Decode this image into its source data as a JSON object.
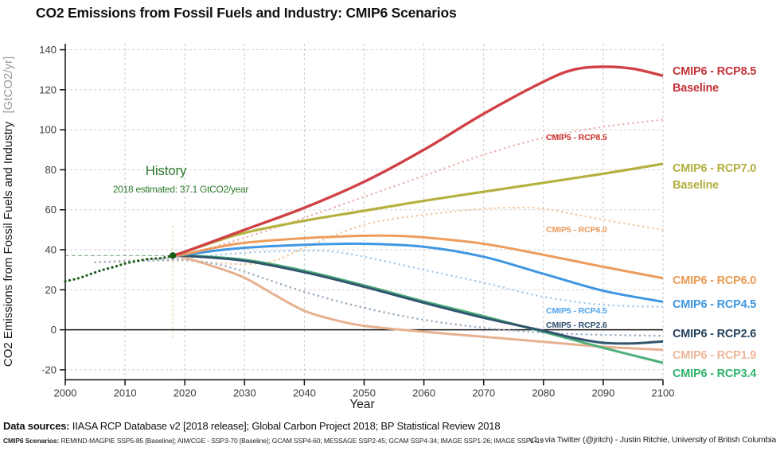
{
  "title": "CO2 Emissions from Fossil Fuels and Industry: CMIP6 Scenarios",
  "axes": {
    "x_label": "Year",
    "y_label": "CO2 Emissions from Fossil Fuels and Industry",
    "y_label_unit": "[GtCO2/yr]",
    "x_ticks": [
      2000,
      2010,
      2020,
      2030,
      2040,
      2050,
      2060,
      2070,
      2080,
      2090,
      2100
    ],
    "y_ticks": [
      -20,
      0,
      20,
      40,
      60,
      80,
      100,
      120,
      140
    ]
  },
  "annotations": {
    "history_title": "History",
    "history_detail": "2018 estimated: 37.1 GtCO2/year",
    "history_color": "#2d7a2d",
    "marker_year": 2018,
    "marker_value": 37.1,
    "marker_color": "#1a5c17"
  },
  "plot_labels": [
    {
      "text": "CMIP5 - RCP8.5",
      "color": "#c9302c"
    },
    {
      "text": "CMIP5 - RCP6.0",
      "color": "#e8995a"
    },
    {
      "text": "CMIP5 - RCP4.5",
      "color": "#4da3e8"
    },
    {
      "text": "CMIP5 - RCP2.6",
      "color": "#2f4f6f"
    }
  ],
  "legend": [
    {
      "label": "CMIP6 - RCP8.5",
      "sublabel": "Baseline",
      "color": "#c43338"
    },
    {
      "label": "CMIP6 - RCP7.0",
      "sublabel": "Baseline",
      "color": "#b3af3e"
    },
    {
      "label": "CMIP6 - RCP6.0",
      "sublabel": "",
      "color": "#ea9a52"
    },
    {
      "label": "CMIP6 - RCP4.5",
      "sublabel": "",
      "color": "#3d96e0"
    },
    {
      "label": "CMIP6 - RCP2.6",
      "sublabel": "",
      "color": "#25425c"
    },
    {
      "label": "CMIP6 - RCP1.9",
      "sublabel": "",
      "color": "#ecb699"
    },
    {
      "label": "CMIP6 - RCP3.4",
      "sublabel": "",
      "color": "#2fb36b"
    }
  ],
  "footer": {
    "sources_bold": "Data sources:",
    "sources_rest": " IIASA RCP Database v2 [2018 release]; Global Carbon Project 2018; BP Statistical Review 2018",
    "scenarios_bold": "CMIP6 Scenarios:",
    "scenarios_rest": " REMIND-MAGPIE SSP5-85 [Baseline]; AIM/CGE - SSP3-70 [Baseline]; GCAM SSP4-60; MESSAGE SSP2-45; GCAM SSP4-34; IMAGE SSP1-26; IMAGE SSP1-19",
    "credit": "v1 - via Twitter (@jritch) - Justin Ritchie, University of British Columbia"
  },
  "chart_data": {
    "type": "line",
    "title": "CO2 Emissions from Fossil Fuels and Industry: CMIP6 Scenarios",
    "xlabel": "Year",
    "ylabel": "CO2 Emissions from Fossil Fuels and Industry [GtCO2/yr]",
    "x_range": [
      2000,
      2100
    ],
    "y_range": [
      -25,
      143
    ],
    "grid": true,
    "legend_position": "right",
    "series": [
      {
        "id": "cmip5-rcp85",
        "name": "CMIP5 - RCP8.5",
        "color": "#efb6b4",
        "dash": "dotted",
        "width": 2.6,
        "points": [
          [
            2005,
            33.8
          ],
          [
            2010,
            34.6
          ],
          [
            2015,
            35.3
          ],
          [
            2020,
            37.5
          ],
          [
            2030,
            46
          ],
          [
            2040,
            56
          ],
          [
            2050,
            66.5
          ],
          [
            2060,
            77
          ],
          [
            2070,
            87.5
          ],
          [
            2080,
            96
          ],
          [
            2090,
            101.5
          ],
          [
            2100,
            105
          ]
        ]
      },
      {
        "id": "cmip5-rcp60",
        "name": "CMIP5 - RCP6.0",
        "color": "#f4c9a0",
        "dash": "dotted",
        "width": 2.6,
        "points": [
          [
            2005,
            33.8
          ],
          [
            2010,
            34.3
          ],
          [
            2015,
            34.6
          ],
          [
            2020,
            34.5
          ],
          [
            2025,
            33.5
          ],
          [
            2030,
            32.8
          ],
          [
            2035,
            34.5
          ],
          [
            2040,
            41
          ],
          [
            2050,
            52.5
          ],
          [
            2060,
            57.5
          ],
          [
            2070,
            60.5
          ],
          [
            2075,
            61
          ],
          [
            2080,
            60.5
          ],
          [
            2090,
            55
          ],
          [
            2100,
            50
          ]
        ]
      },
      {
        "id": "cmip5-rcp45",
        "name": "CMIP5 - RCP4.5",
        "color": "#aacbea",
        "dash": "dotted",
        "width": 2.6,
        "points": [
          [
            2005,
            33.8
          ],
          [
            2010,
            34.2
          ],
          [
            2015,
            35
          ],
          [
            2020,
            36
          ],
          [
            2030,
            38.5
          ],
          [
            2040,
            39.5
          ],
          [
            2045,
            39
          ],
          [
            2050,
            36.5
          ],
          [
            2060,
            30
          ],
          [
            2070,
            23.5
          ],
          [
            2080,
            16.5
          ],
          [
            2090,
            12.5
          ],
          [
            2100,
            11.5
          ]
        ]
      },
      {
        "id": "cmip5-rcp26",
        "name": "CMIP5 - RCP2.6",
        "color": "#9db0c5",
        "dash": "dotted",
        "width": 2.6,
        "points": [
          [
            2005,
            33.8
          ],
          [
            2010,
            34.2
          ],
          [
            2015,
            34.6
          ],
          [
            2020,
            35
          ],
          [
            2025,
            33
          ],
          [
            2030,
            29
          ],
          [
            2040,
            19
          ],
          [
            2050,
            11
          ],
          [
            2060,
            5
          ],
          [
            2070,
            1
          ],
          [
            2080,
            -1.5
          ],
          [
            2090,
            -2.5
          ],
          [
            2100,
            -3
          ]
        ]
      },
      {
        "id": "cmip6-rcp19",
        "name": "CMIP6 - RCP1.9",
        "color": "#e7b190",
        "dash": "solid",
        "width": 3,
        "points": [
          [
            2018,
            37.1
          ],
          [
            2020,
            36
          ],
          [
            2025,
            31.5
          ],
          [
            2030,
            26
          ],
          [
            2035,
            17.5
          ],
          [
            2040,
            9.5
          ],
          [
            2045,
            5
          ],
          [
            2050,
            2
          ],
          [
            2060,
            -1
          ],
          [
            2070,
            -3.5
          ],
          [
            2080,
            -6
          ],
          [
            2090,
            -8.5
          ],
          [
            2100,
            -10
          ]
        ]
      },
      {
        "id": "cmip6-rcp34",
        "name": "CMIP6 - RCP3.4",
        "color": "#4caf79",
        "dash": "solid",
        "width": 3,
        "points": [
          [
            2018,
            37.1
          ],
          [
            2020,
            37.2
          ],
          [
            2030,
            35
          ],
          [
            2040,
            29.5
          ],
          [
            2050,
            22.2
          ],
          [
            2060,
            14.2
          ],
          [
            2070,
            6.8
          ],
          [
            2080,
            -1
          ],
          [
            2090,
            -9
          ],
          [
            2100,
            -16.5
          ]
        ]
      },
      {
        "id": "cmip6-rcp26",
        "name": "CMIP6 - RCP2.6",
        "color": "#31556e",
        "dash": "solid",
        "width": 3,
        "points": [
          [
            2018,
            37.1
          ],
          [
            2020,
            37
          ],
          [
            2030,
            34.5
          ],
          [
            2040,
            28.8
          ],
          [
            2050,
            21.5
          ],
          [
            2060,
            13.5
          ],
          [
            2070,
            6
          ],
          [
            2080,
            -0.5
          ],
          [
            2085,
            -4
          ],
          [
            2090,
            -6.5
          ],
          [
            2095,
            -6.8
          ],
          [
            2100,
            -5.8
          ]
        ]
      },
      {
        "id": "cmip6-rcp45",
        "name": "CMIP6 - RCP4.5",
        "color": "#3f97e2",
        "dash": "solid",
        "width": 3,
        "points": [
          [
            2018,
            37.1
          ],
          [
            2020,
            37.5
          ],
          [
            2025,
            39.5
          ],
          [
            2030,
            41
          ],
          [
            2040,
            42.5
          ],
          [
            2050,
            43
          ],
          [
            2060,
            41.5
          ],
          [
            2070,
            36.5
          ],
          [
            2080,
            28
          ],
          [
            2090,
            19.5
          ],
          [
            2100,
            14
          ]
        ]
      },
      {
        "id": "cmip6-rcp60",
        "name": "CMIP6 - RCP6.0",
        "color": "#ec9c5d",
        "dash": "solid",
        "width": 3,
        "points": [
          [
            2018,
            37.1
          ],
          [
            2020,
            37.8
          ],
          [
            2025,
            41
          ],
          [
            2030,
            43.5
          ],
          [
            2040,
            45.8
          ],
          [
            2050,
            47
          ],
          [
            2055,
            47
          ],
          [
            2060,
            46.2
          ],
          [
            2070,
            43
          ],
          [
            2080,
            37.5
          ],
          [
            2090,
            31.5
          ],
          [
            2100,
            25.8
          ]
        ]
      },
      {
        "id": "cmip6-rcp70",
        "name": "CMIP6 - RCP7.0 Baseline",
        "color": "#b4b13e",
        "dash": "solid",
        "width": 3.2,
        "points": [
          [
            2018,
            37.1
          ],
          [
            2020,
            39
          ],
          [
            2025,
            44
          ],
          [
            2030,
            48.5
          ],
          [
            2040,
            54.5
          ],
          [
            2050,
            59.5
          ],
          [
            2060,
            64.5
          ],
          [
            2070,
            69
          ],
          [
            2080,
            73.5
          ],
          [
            2090,
            78
          ],
          [
            2100,
            83
          ]
        ]
      },
      {
        "id": "cmip6-rcp85",
        "name": "CMIP6 - RCP8.5 Baseline",
        "color": "#cf4145",
        "dash": "solid",
        "width": 3.4,
        "points": [
          [
            2018,
            37.1
          ],
          [
            2020,
            39
          ],
          [
            2025,
            44.5
          ],
          [
            2030,
            50
          ],
          [
            2040,
            61
          ],
          [
            2050,
            74
          ],
          [
            2060,
            90
          ],
          [
            2070,
            108
          ],
          [
            2080,
            124
          ],
          [
            2085,
            130
          ],
          [
            2090,
            131.5
          ],
          [
            2095,
            130.5
          ],
          [
            2100,
            127
          ]
        ]
      },
      {
        "id": "history",
        "name": "History",
        "color": "#1a5c17",
        "dash": "dotted",
        "width": 3.2,
        "points": [
          [
            2000,
            24.3
          ],
          [
            2002,
            25.6
          ],
          [
            2004,
            27.6
          ],
          [
            2006,
            29.7
          ],
          [
            2008,
            31.3
          ],
          [
            2010,
            33.1
          ],
          [
            2012,
            34.4
          ],
          [
            2014,
            35.4
          ],
          [
            2016,
            35.8
          ],
          [
            2018,
            37.1
          ]
        ]
      }
    ]
  }
}
